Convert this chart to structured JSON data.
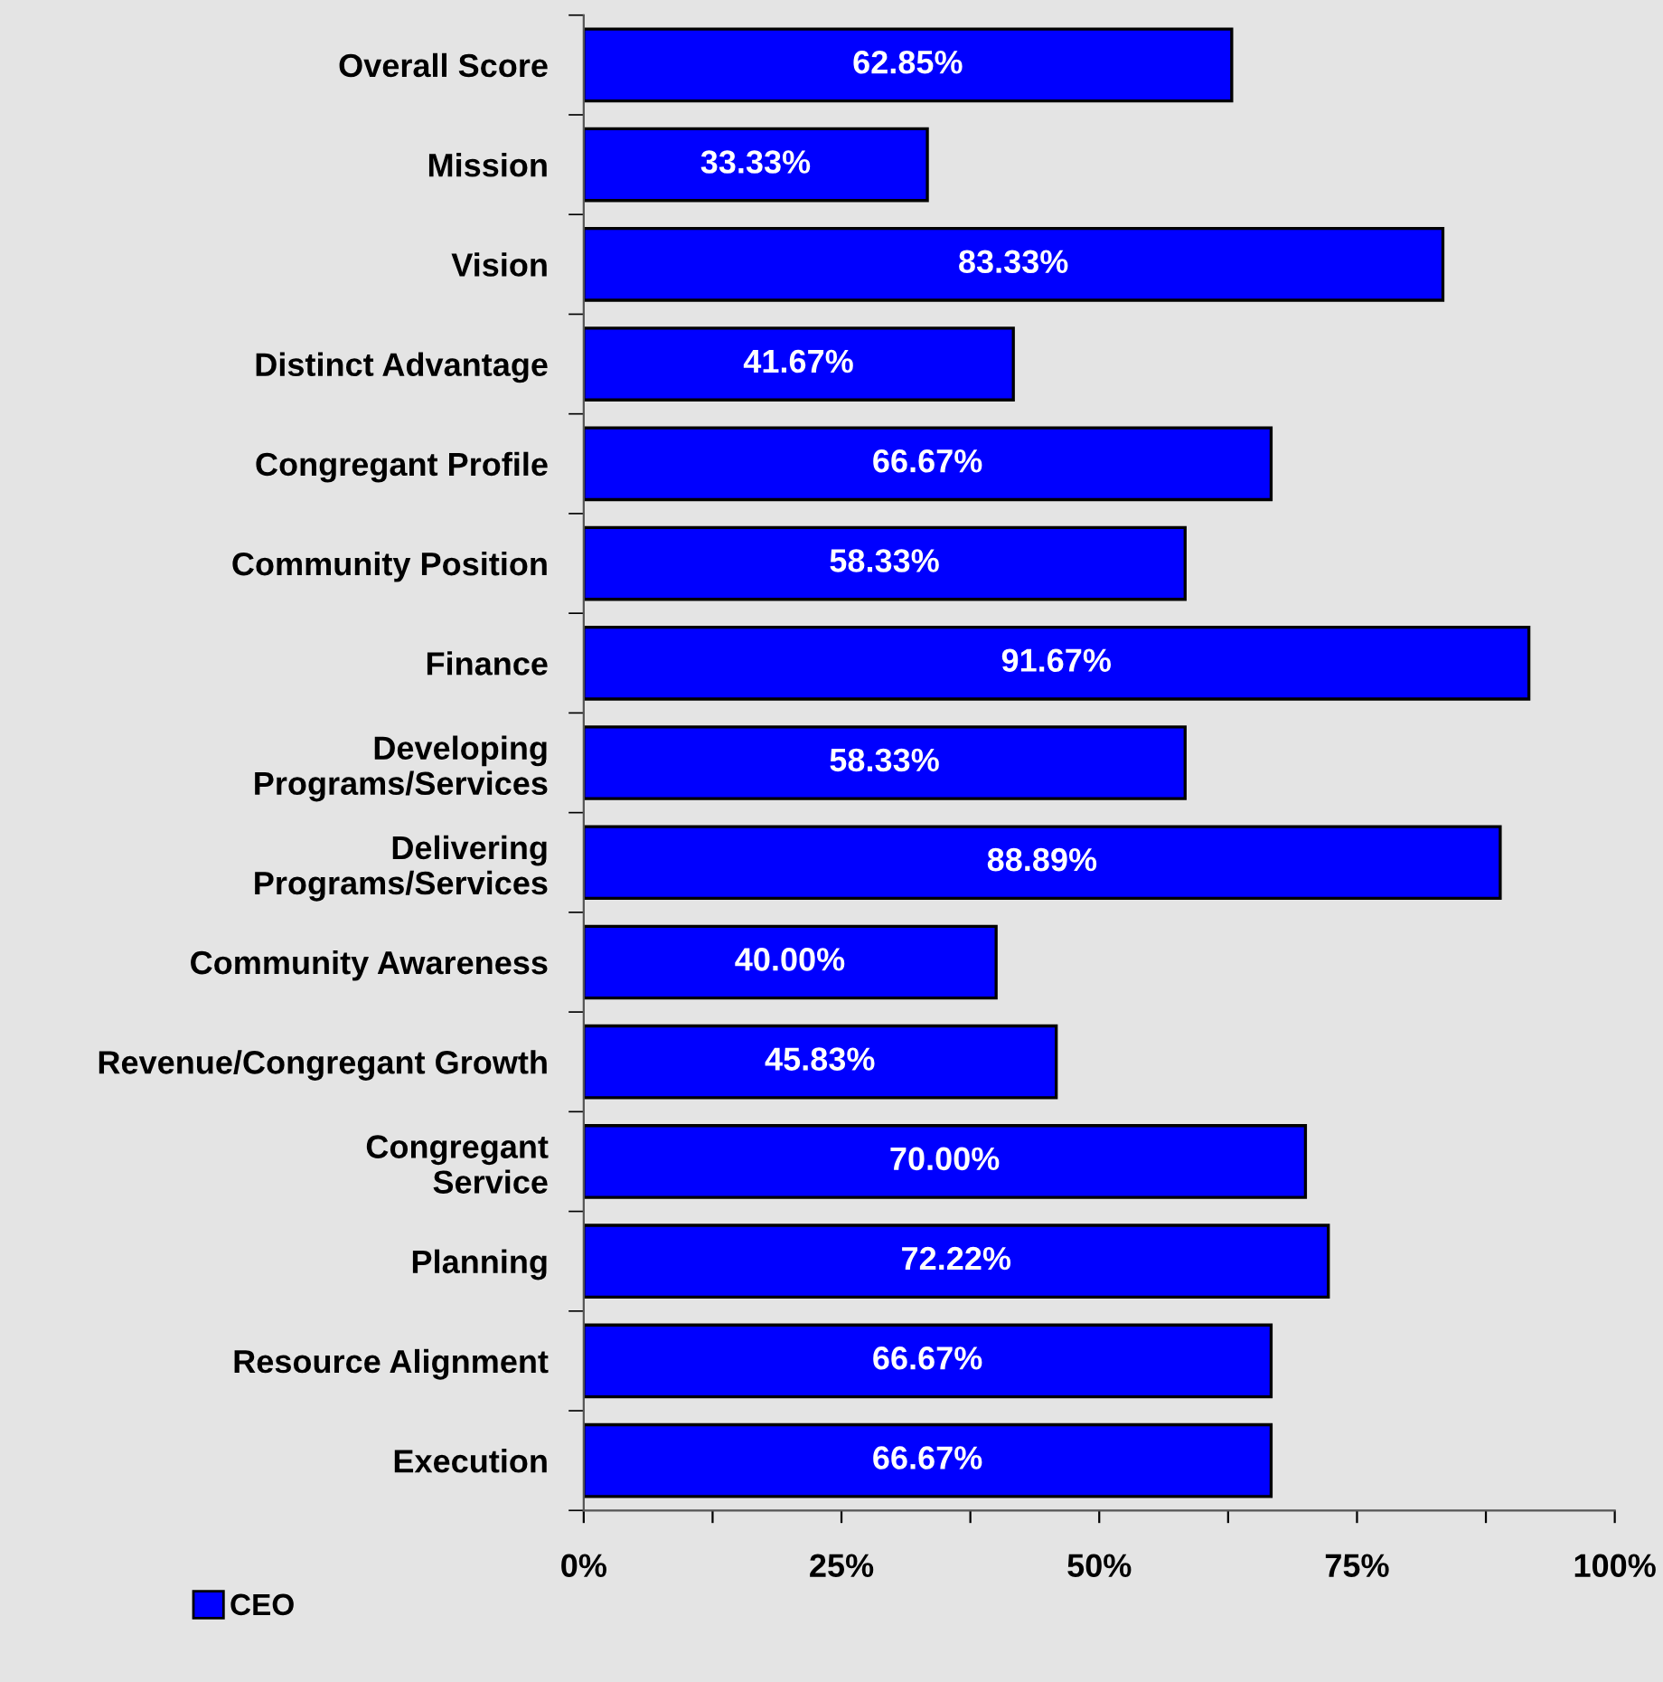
{
  "chart_data": {
    "type": "bar",
    "orientation": "horizontal",
    "categories": [
      "Overall Score",
      "Mission",
      "Vision",
      "Distinct Advantage",
      "Congregant Profile",
      "Community Position",
      "Finance",
      "Developing\nPrograms/Services",
      "Delivering\nPrograms/Services",
      "Community Awareness",
      "Revenue/Congregant Growth",
      "Congregant\nService",
      "Planning",
      "Resource Alignment",
      "Execution"
    ],
    "series": [
      {
        "name": "CEO",
        "color": "#0000ff",
        "values": [
          62.85,
          33.33,
          83.33,
          41.67,
          66.67,
          58.33,
          91.67,
          58.33,
          88.89,
          40.0,
          45.83,
          70.0,
          72.22,
          66.67,
          66.67
        ],
        "value_labels": [
          "62.85%",
          "33.33%",
          "83.33%",
          "41.67%",
          "66.67%",
          "58.33%",
          "91.67%",
          "58.33%",
          "88.89%",
          "40.00%",
          "45.83%",
          "70.00%",
          "72.22%",
          "66.67%",
          "66.67%"
        ]
      }
    ],
    "xlim": [
      0,
      100
    ],
    "xticks": [
      {
        "value": 0,
        "label": "0%"
      },
      {
        "value": 12.5,
        "label": null
      },
      {
        "value": 25,
        "label": "25%"
      },
      {
        "value": 37.5,
        "label": null
      },
      {
        "value": 50,
        "label": "50%"
      },
      {
        "value": 62.5,
        "label": null
      },
      {
        "value": 75,
        "label": "75%"
      },
      {
        "value": 87.5,
        "label": null
      },
      {
        "value": 100,
        "label": "100%"
      }
    ],
    "grid": false,
    "legend": "bottom left"
  }
}
